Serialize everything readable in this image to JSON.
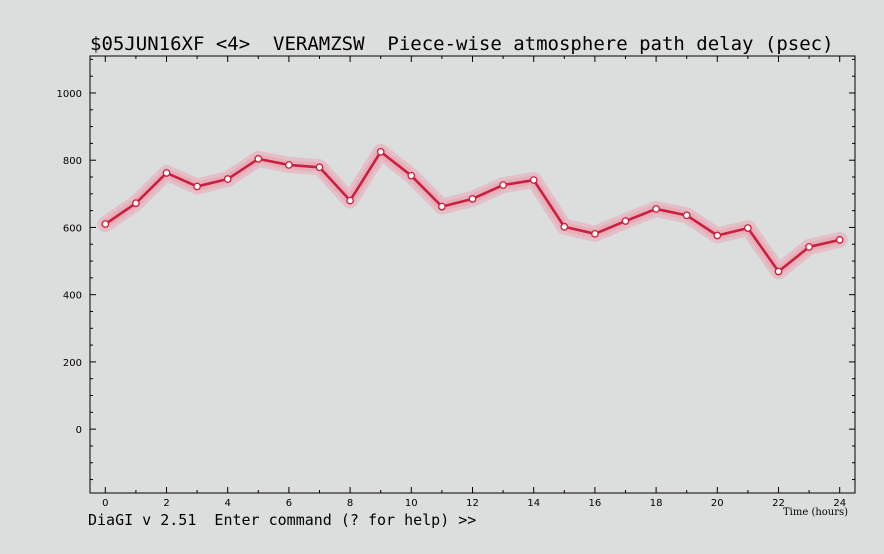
{
  "title": "$05JUN16XF <4>  VERAMZSW  Piece-wise atmosphere path delay (psec)",
  "status_line": "DiaGI v 2.51  Enter command (? for help) >>",
  "chart_data": {
    "type": "line",
    "title": "$05JUN16XF <4>  VERAMZSW  Piece-wise atmosphere path delay (psec)",
    "xlabel": "Time (hours)",
    "ylabel": "",
    "xlim": [
      -0.5,
      24.5
    ],
    "ylim": [
      -190,
      1110
    ],
    "x_ticks": [
      0,
      2,
      4,
      6,
      8,
      10,
      12,
      14,
      16,
      18,
      20,
      22,
      24
    ],
    "y_ticks": [
      0,
      200,
      400,
      600,
      800,
      1000
    ],
    "grid": false,
    "line_color": "#c8203e",
    "band_color": "#e9a6b4",
    "marker_fill": "#ffffff",
    "series": [
      {
        "x": [
          0,
          1,
          2,
          3,
          4,
          5,
          6,
          7,
          8,
          9,
          10,
          11,
          12,
          13,
          14,
          15,
          16,
          17,
          18,
          19,
          20,
          21,
          22,
          23,
          24
        ],
        "values": [
          610,
          672,
          762,
          722,
          744,
          804,
          786,
          779,
          680,
          825,
          754,
          662,
          685,
          726,
          741,
          602,
          581,
          619,
          655,
          636,
          576,
          598,
          469,
          542,
          563
        ]
      }
    ]
  }
}
